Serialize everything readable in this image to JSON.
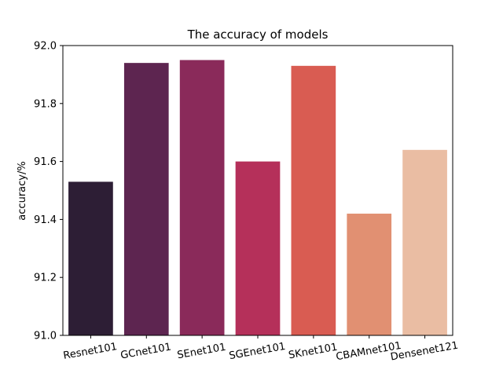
{
  "chart_data": {
    "type": "bar",
    "title": "The accuracy of models",
    "xlabel": "",
    "ylabel": "accuracy/%",
    "ylim": [
      91.0,
      92.0
    ],
    "yticks": [
      "91.0",
      "91.2",
      "91.4",
      "91.6",
      "91.8",
      "92.0"
    ],
    "categories": [
      "Resnet101",
      "GCnet101",
      "SEnet101",
      "SGEnet101",
      "SKnet101",
      "CBAMnet101",
      "Densenet121"
    ],
    "values": [
      91.53,
      91.94,
      91.95,
      91.6,
      91.93,
      91.42,
      91.64
    ],
    "colors": [
      "#2d1e35",
      "#5d2550",
      "#8a2a5a",
      "#b5305a",
      "#d95c52",
      "#e19072",
      "#eabda3"
    ],
    "grid": false,
    "legend": "none"
  }
}
